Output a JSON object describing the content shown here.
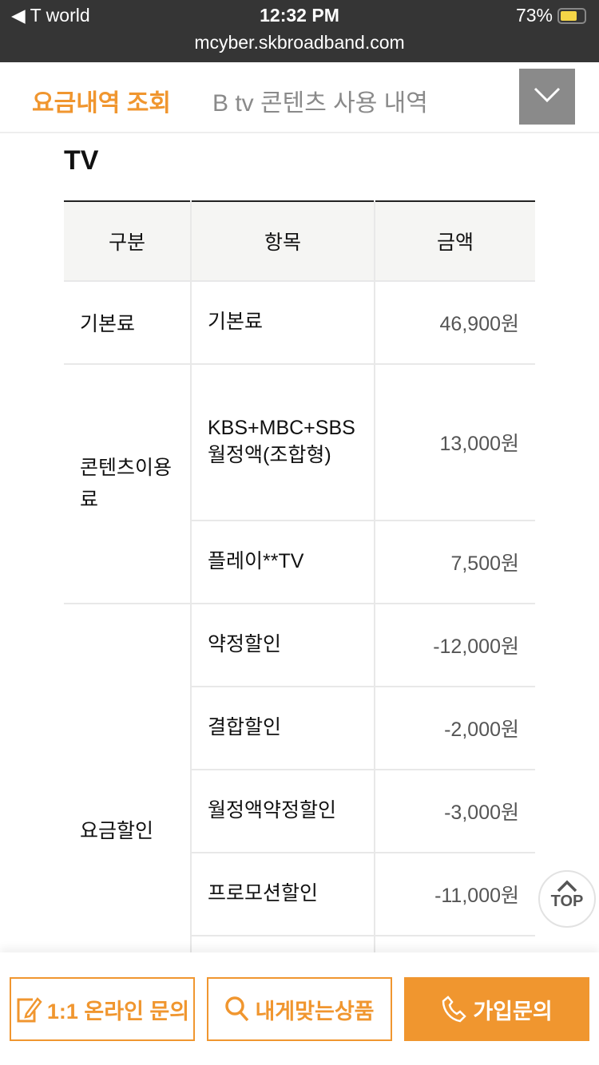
{
  "status": {
    "carrier": "◀ T world",
    "time": "12:32 PM",
    "battery": "73%",
    "url": "mcyber.skbroadband.com"
  },
  "tabs": [
    {
      "label": "요금내역 조회",
      "active": true
    },
    {
      "label": "B tv 콘텐츠 사용 내역",
      "active": false
    }
  ],
  "section_title": "TV",
  "table": {
    "headers": [
      "구분",
      "항목",
      "금액"
    ],
    "groups": [
      {
        "category": "기본료",
        "items": [
          {
            "name": "기본료",
            "amount": "46,900원"
          }
        ]
      },
      {
        "category": "콘텐츠이용료",
        "items": [
          {
            "name": "KBS+MBC+SBS월정액(조합형)",
            "amount": "13,000원"
          },
          {
            "name": "플레이**TV",
            "amount": "7,500원"
          }
        ]
      },
      {
        "category": "요금할인",
        "items": [
          {
            "name": "약정할인",
            "amount": "-12,000원"
          },
          {
            "name": "결합할인",
            "amount": "-2,000원"
          },
          {
            "name": "월정액약정할인",
            "amount": "-3,000원"
          },
          {
            "name": "프로모션할인",
            "amount": "-11,000원"
          }
        ]
      }
    ]
  },
  "top_button": "TOP",
  "bottom": {
    "inquiry": "1:1 온라인 문의",
    "products": "내게맞는상품",
    "join": "가입문의"
  },
  "colors": {
    "accent": "#f0962f",
    "statusbar": "#353535"
  }
}
